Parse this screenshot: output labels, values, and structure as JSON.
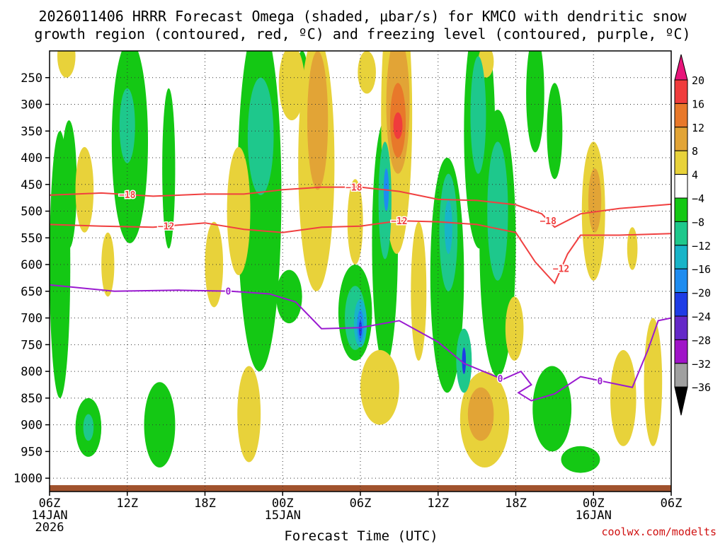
{
  "chart_data": {
    "type": "heatmap",
    "title_lines": [
      "2026011406 HRRR Forecast Omega (shaded, μbar/s) for KMCO with dendritic snow",
      "growth region (contoured, red, ºC) and freezing level (contoured, purple, ºC)"
    ],
    "xlabel": "Forecast Time (UTC)",
    "credit": "coolwx.com/modelts",
    "x_range_hours": [
      0,
      48
    ],
    "y_range_hpa": [
      1025,
      200
    ],
    "y_axis": "pressure (hPa), decreasing upward",
    "y_ticks": [
      250,
      300,
      350,
      400,
      450,
      500,
      550,
      600,
      650,
      700,
      750,
      800,
      850,
      900,
      950,
      1000
    ],
    "x_ticks": [
      {
        "h": 0,
        "lines": [
          "06Z",
          "14JAN",
          "2026"
        ]
      },
      {
        "h": 6,
        "lines": [
          "12Z"
        ]
      },
      {
        "h": 12,
        "lines": [
          "18Z"
        ]
      },
      {
        "h": 18,
        "lines": [
          "00Z",
          "15JAN"
        ]
      },
      {
        "h": 24,
        "lines": [
          "06Z"
        ]
      },
      {
        "h": 30,
        "lines": [
          "12Z"
        ]
      },
      {
        "h": 36,
        "lines": [
          "18Z"
        ]
      },
      {
        "h": 42,
        "lines": [
          "00Z",
          "16JAN"
        ]
      },
      {
        "h": 48,
        "lines": [
          "06Z"
        ]
      }
    ],
    "colorbar": {
      "bins": [
        {
          "from": 20,
          "to": null,
          "color": "#e8147a"
        },
        {
          "from": 16,
          "to": 20,
          "color": "#f03c3c"
        },
        {
          "from": 12,
          "to": 16,
          "color": "#e8782a"
        },
        {
          "from": 8,
          "to": 12,
          "color": "#e2a436"
        },
        {
          "from": 4,
          "to": 8,
          "color": "#e8d23a"
        },
        {
          "from": -4,
          "to": 4,
          "color": "#ffffff"
        },
        {
          "from": -8,
          "to": -4,
          "color": "#14c814"
        },
        {
          "from": -12,
          "to": -8,
          "color": "#1ec88c"
        },
        {
          "from": -16,
          "to": -12,
          "color": "#18b4c8"
        },
        {
          "from": -20,
          "to": -16,
          "color": "#1e8cf0"
        },
        {
          "from": -24,
          "to": -20,
          "color": "#1e3ce6"
        },
        {
          "from": -28,
          "to": -24,
          "color": "#6428c8"
        },
        {
          "from": -32,
          "to": -28,
          "color": "#a014c8"
        },
        {
          "from": -36,
          "to": -32,
          "color": "#a0a0a0"
        },
        {
          "from": null,
          "to": -36,
          "color": "#000000"
        }
      ],
      "labels": [
        "20",
        "16",
        "12",
        "8",
        "4",
        "−4",
        "−8",
        "−12",
        "−16",
        "−20",
        "−24",
        "−28",
        "−32",
        "−36"
      ]
    },
    "omega_features": [
      {
        "value": -6,
        "x_h": 0.8,
        "p": 600,
        "rx_h": 0.8,
        "rp": 250
      },
      {
        "value": -6,
        "x_h": 1.5,
        "p": 450,
        "rx_h": 0.6,
        "rp": 120
      },
      {
        "value": -6,
        "x_h": 3.0,
        "p": 905,
        "rx_h": 1.0,
        "rp": 55
      },
      {
        "value": -10,
        "x_h": 3.0,
        "p": 905,
        "rx_h": 0.4,
        "rp": 25
      },
      {
        "value": -6,
        "x_h": 6.2,
        "p": 370,
        "rx_h": 1.4,
        "rp": 190
      },
      {
        "value": -10,
        "x_h": 6.0,
        "p": 340,
        "rx_h": 0.6,
        "rp": 70
      },
      {
        "value": -6,
        "x_h": 8.5,
        "p": 900,
        "rx_h": 1.2,
        "rp": 80
      },
      {
        "value": -6,
        "x_h": 9.2,
        "p": 420,
        "rx_h": 0.5,
        "rp": 150
      },
      {
        "value": -6,
        "x_h": 16.2,
        "p": 470,
        "rx_h": 1.7,
        "rp": 330
      },
      {
        "value": -10,
        "x_h": 16.3,
        "p": 360,
        "rx_h": 1.0,
        "rp": 110
      },
      {
        "value": -6,
        "x_h": 18.5,
        "p": 660,
        "rx_h": 1.0,
        "rp": 50
      },
      {
        "value": -6,
        "x_h": 19.5,
        "p": 240,
        "rx_h": 0.4,
        "rp": 40
      },
      {
        "value": -6,
        "x_h": 23.6,
        "p": 690,
        "rx_h": 1.3,
        "rp": 90
      },
      {
        "value": -10,
        "x_h": 23.6,
        "p": 700,
        "rx_h": 0.8,
        "rp": 60
      },
      {
        "value": -14,
        "x_h": 24.0,
        "p": 710,
        "rx_h": 0.5,
        "rp": 45
      },
      {
        "value": -18,
        "x_h": 24.0,
        "p": 715,
        "rx_h": 0.25,
        "rp": 30
      },
      {
        "value": -22,
        "x_h": 24.0,
        "p": 720,
        "rx_h": 0.12,
        "rp": 15
      },
      {
        "value": -6,
        "x_h": 25.9,
        "p": 560,
        "rx_h": 1.0,
        "rp": 230
      },
      {
        "value": -10,
        "x_h": 25.9,
        "p": 480,
        "rx_h": 0.5,
        "rp": 110
      },
      {
        "value": -18,
        "x_h": 26.0,
        "p": 460,
        "rx_h": 0.2,
        "rp": 40
      },
      {
        "value": -6,
        "x_h": 30.7,
        "p": 620,
        "rx_h": 1.3,
        "rp": 220
      },
      {
        "value": -10,
        "x_h": 30.8,
        "p": 540,
        "rx_h": 0.7,
        "rp": 110
      },
      {
        "value": -14,
        "x_h": 30.8,
        "p": 530,
        "rx_h": 0.3,
        "rp": 50
      },
      {
        "value": -10,
        "x_h": 32.0,
        "p": 780,
        "rx_h": 0.6,
        "rp": 60
      },
      {
        "value": -22,
        "x_h": 32.0,
        "p": 780,
        "rx_h": 0.15,
        "rp": 25
      },
      {
        "value": -6,
        "x_h": 33.2,
        "p": 350,
        "rx_h": 1.2,
        "rp": 220
      },
      {
        "value": -10,
        "x_h": 33.1,
        "p": 320,
        "rx_h": 0.6,
        "rp": 110
      },
      {
        "value": -6,
        "x_h": 34.6,
        "p": 560,
        "rx_h": 1.4,
        "rp": 250
      },
      {
        "value": -10,
        "x_h": 34.6,
        "p": 500,
        "rx_h": 0.8,
        "rp": 130
      },
      {
        "value": -6,
        "x_h": 37.5,
        "p": 280,
        "rx_h": 0.7,
        "rp": 110
      },
      {
        "value": -6,
        "x_h": 39.0,
        "p": 350,
        "rx_h": 0.6,
        "rp": 90
      },
      {
        "value": -6,
        "x_h": 38.8,
        "p": 870,
        "rx_h": 1.5,
        "rp": 80
      },
      {
        "value": -6,
        "x_h": 41.0,
        "p": 965,
        "rx_h": 1.5,
        "rp": 25
      }
    ],
    "omega_features_positive": [
      {
        "value": 6,
        "x_h": 1.3,
        "p": 210,
        "rx_h": 0.7,
        "rp": 40
      },
      {
        "value": 6,
        "x_h": 2.7,
        "p": 460,
        "rx_h": 0.7,
        "rp": 80
      },
      {
        "value": 6,
        "x_h": 4.5,
        "p": 600,
        "rx_h": 0.5,
        "rp": 60
      },
      {
        "value": 6,
        "x_h": 12.7,
        "p": 600,
        "rx_h": 0.7,
        "rp": 80
      },
      {
        "value": 6,
        "x_h": 14.6,
        "p": 500,
        "rx_h": 0.9,
        "rp": 120
      },
      {
        "value": 6,
        "x_h": 15.4,
        "p": 880,
        "rx_h": 0.9,
        "rp": 90
      },
      {
        "value": 6,
        "x_h": 18.7,
        "p": 260,
        "rx_h": 1.0,
        "rp": 70
      },
      {
        "value": 6,
        "x_h": 20.6,
        "p": 410,
        "rx_h": 1.4,
        "rp": 240
      },
      {
        "value": 10,
        "x_h": 20.7,
        "p": 330,
        "rx_h": 0.8,
        "rp": 130
      },
      {
        "value": 6,
        "x_h": 23.6,
        "p": 520,
        "rx_h": 0.6,
        "rp": 80
      },
      {
        "value": 6,
        "x_h": 26.8,
        "p": 320,
        "rx_h": 1.2,
        "rp": 260
      },
      {
        "value": 10,
        "x_h": 26.9,
        "p": 300,
        "rx_h": 0.9,
        "rp": 130
      },
      {
        "value": 14,
        "x_h": 26.9,
        "p": 330,
        "rx_h": 0.6,
        "rp": 70
      },
      {
        "value": 18,
        "x_h": 26.9,
        "p": 340,
        "rx_h": 0.35,
        "rp": 25
      },
      {
        "value": 6,
        "x_h": 24.5,
        "p": 240,
        "rx_h": 0.7,
        "rp": 40
      },
      {
        "value": 6,
        "x_h": 28.5,
        "p": 650,
        "rx_h": 0.6,
        "rp": 130
      },
      {
        "value": 6,
        "x_h": 25.5,
        "p": 830,
        "rx_h": 1.5,
        "rp": 70
      },
      {
        "value": 6,
        "x_h": 33.6,
        "p": 890,
        "rx_h": 1.9,
        "rp": 90
      },
      {
        "value": 10,
        "x_h": 33.3,
        "p": 880,
        "rx_h": 1.0,
        "rp": 50
      },
      {
        "value": 6,
        "x_h": 33.7,
        "p": 220,
        "rx_h": 0.6,
        "rp": 30
      },
      {
        "value": 6,
        "x_h": 35.9,
        "p": 720,
        "rx_h": 0.7,
        "rp": 60
      },
      {
        "value": 6,
        "x_h": 42.0,
        "p": 500,
        "rx_h": 0.9,
        "rp": 130
      },
      {
        "value": 10,
        "x_h": 42.1,
        "p": 480,
        "rx_h": 0.5,
        "rp": 60
      },
      {
        "value": 6,
        "x_h": 44.3,
        "p": 850,
        "rx_h": 1.0,
        "rp": 90
      },
      {
        "value": 6,
        "x_h": 46.6,
        "p": 820,
        "rx_h": 0.7,
        "rp": 120
      },
      {
        "value": 6,
        "x_h": 45.0,
        "p": 570,
        "rx_h": 0.4,
        "rp": 40
      }
    ],
    "isotherms": [
      {
        "label": "−18",
        "color": "#f04040",
        "label_h": [
          6.0,
          23.5,
          38.5
        ],
        "points": [
          [
            0,
            470
          ],
          [
            4,
            466
          ],
          [
            8,
            472
          ],
          [
            12,
            468
          ],
          [
            15,
            468
          ],
          [
            18,
            460
          ],
          [
            21,
            455
          ],
          [
            24,
            455
          ],
          [
            27,
            463
          ],
          [
            30,
            478
          ],
          [
            33,
            480
          ],
          [
            36,
            488
          ],
          [
            38,
            505
          ],
          [
            39,
            530
          ],
          [
            41,
            505
          ],
          [
            44,
            495
          ],
          [
            48,
            487
          ]
        ]
      },
      {
        "label": "−12",
        "color": "#f04040",
        "label_h": [
          9.0,
          27.0,
          39.5
        ],
        "points": [
          [
            0,
            525
          ],
          [
            4,
            528
          ],
          [
            8,
            530
          ],
          [
            12,
            522
          ],
          [
            15,
            534
          ],
          [
            18,
            540
          ],
          [
            21,
            530
          ],
          [
            24,
            528
          ],
          [
            27,
            518
          ],
          [
            30,
            520
          ],
          [
            33,
            525
          ],
          [
            36,
            540
          ],
          [
            37.5,
            595
          ],
          [
            39,
            635
          ],
          [
            40,
            580
          ],
          [
            41,
            545
          ],
          [
            44,
            545
          ],
          [
            48,
            542
          ]
        ]
      },
      {
        "label": "0",
        "color": "#9a1ad0",
        "label_h": [
          13.8,
          34.8,
          42.5
        ],
        "points": [
          [
            0,
            638
          ],
          [
            5,
            650
          ],
          [
            10,
            648
          ],
          [
            14,
            650
          ],
          [
            17,
            655
          ],
          [
            19,
            670
          ],
          [
            21,
            720
          ],
          [
            24,
            718
          ],
          [
            27,
            705
          ],
          [
            30,
            745
          ],
          [
            32,
            785
          ],
          [
            35,
            815
          ],
          [
            36.4,
            800
          ],
          [
            37.2,
            825
          ],
          [
            36.2,
            840
          ],
          [
            37.2,
            855
          ],
          [
            39,
            842
          ],
          [
            41,
            810
          ],
          [
            43,
            820
          ],
          [
            45,
            830
          ],
          [
            46.2,
            760
          ],
          [
            47,
            705
          ],
          [
            48,
            700
          ]
        ]
      }
    ],
    "ground_level_hpa": 1013
  }
}
